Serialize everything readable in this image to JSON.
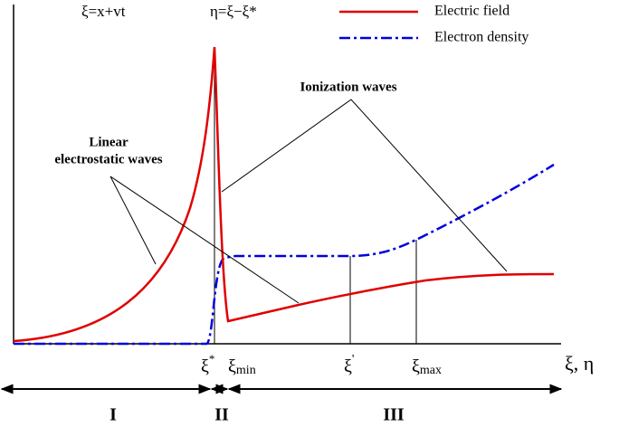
{
  "header": {
    "coord1": "ξ=x+vt",
    "coord2": "η=ξ−ξ*"
  },
  "legend": {
    "items": [
      {
        "label": "Electric field",
        "color": "#e00000"
      },
      {
        "label": "Electron density",
        "color": "#0000e0"
      }
    ]
  },
  "annotations": {
    "linear": [
      "Linear",
      "electrostatic waves"
    ],
    "ionization": "Ionization waves"
  },
  "axis": {
    "label": "ξ, η",
    "ticks": [
      {
        "symbol": "ξ",
        "mark": "*"
      },
      {
        "symbol": "ξ",
        "sub": "min"
      },
      {
        "symbol": "ξ",
        "mark": "'"
      },
      {
        "symbol": "ξ",
        "sub": "max"
      }
    ]
  },
  "regions": [
    "I",
    "II",
    "III"
  ]
}
